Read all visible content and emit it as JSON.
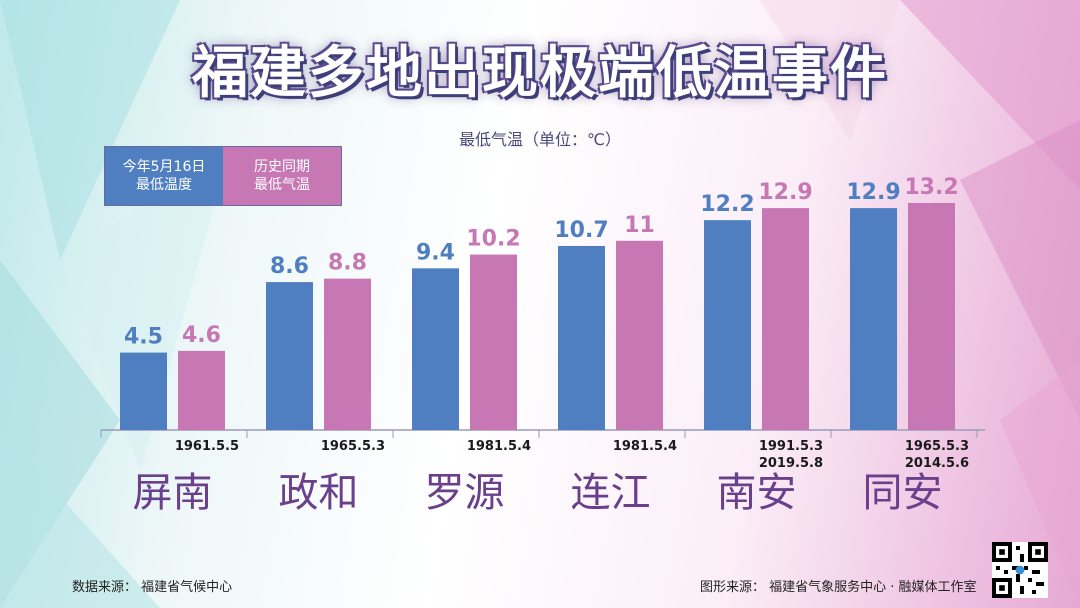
{
  "title": "福建多地出现极端低温事件",
  "unit_label": "最低气温（单位：℃）",
  "legend": [
    {
      "label": "今年5月16日\n最低温度",
      "color": "#4f7fc0"
    },
    {
      "label": "历史同期\n最低气温",
      "color": "#c677b4"
    }
  ],
  "chart_data": {
    "type": "bar",
    "categories": [
      "屏南",
      "政和",
      "罗源",
      "连江",
      "南安",
      "同安"
    ],
    "series": [
      {
        "name": "今年5月16日最低温度",
        "color": "#4f7fc0",
        "values": [
          4.5,
          8.6,
          9.4,
          10.7,
          12.2,
          12.9
        ]
      },
      {
        "name": "历史同期最低气温",
        "color": "#c677b4",
        "values": [
          4.6,
          8.8,
          10.2,
          11,
          12.9,
          13.2
        ]
      }
    ],
    "value_labels": [
      [
        "4.5",
        "8.6",
        "9.4",
        "10.7",
        "12.2",
        "12.9"
      ],
      [
        "4.6",
        "8.8",
        "10.2",
        "11",
        "12.9",
        "13.2"
      ]
    ],
    "record_dates": [
      [
        "1961.5.5"
      ],
      [
        "1965.5.3"
      ],
      [
        "1981.5.4"
      ],
      [
        "1981.5.4"
      ],
      [
        "1991.5.3",
        "2019.5.8"
      ],
      [
        "1965.5.3",
        "2014.5.6"
      ]
    ],
    "ylabel": "最低气温（单位：℃）",
    "grid": false,
    "legend_position": "top-left"
  },
  "footer": {
    "data_source": "数据来源：  福建省气候中心",
    "graphic_source": "图形来源：  福建省气象服务中心 · 融媒体工作室"
  }
}
